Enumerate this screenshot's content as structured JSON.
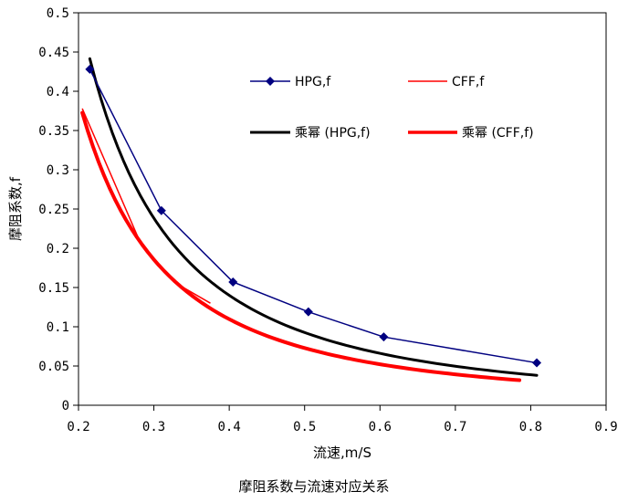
{
  "chart_data": {
    "type": "scatter",
    "title": "",
    "caption": "摩阻系数与流速对应关系",
    "xlabel": "流速,m/S",
    "ylabel": "摩阻系数,f",
    "xlim": [
      0.2,
      0.9
    ],
    "ylim": [
      0,
      0.5
    ],
    "x_ticks": [
      0.2,
      0.3,
      0.4,
      0.5,
      0.6,
      0.7,
      0.8,
      0.9
    ],
    "y_ticks": [
      0,
      0.05,
      0.1,
      0.15,
      0.2,
      0.25,
      0.3,
      0.35,
      0.4,
      0.45,
      0.5
    ],
    "x_tick_labels": [
      "0.2",
      "0.3",
      "0.4",
      "0.5",
      "0.6",
      "0.7",
      "0.8",
      "0.9"
    ],
    "y_tick_labels": [
      "0",
      "0.05",
      "0.1",
      "0.15",
      "0.2",
      "0.25",
      "0.3",
      "0.35",
      "0.4",
      "0.45",
      "0.5"
    ],
    "grid": false,
    "legend_position": "top-right inside",
    "series": [
      {
        "name": "HPG,f",
        "kind": "line-markers",
        "color": "#000080",
        "marker": "diamond",
        "x": [
          0.215,
          0.31,
          0.405,
          0.505,
          0.605,
          0.808
        ],
        "y": [
          0.428,
          0.248,
          0.157,
          0.119,
          0.087,
          0.054
        ]
      },
      {
        "name": "CFF,f",
        "kind": "line",
        "color": "#ff0000",
        "x": [
          0.205,
          0.283,
          0.33,
          0.375
        ],
        "y": [
          0.378,
          0.205,
          0.155,
          0.13
        ]
      },
      {
        "name": "乘幂 (HPG,f)",
        "kind": "power-trend",
        "color": "#000000",
        "coef": 0.0257,
        "exponent": -1.85,
        "x_range": [
          0.215,
          0.808
        ]
      },
      {
        "name": "乘幂 (CFF,f)",
        "kind": "power-trend",
        "color": "#ff0000",
        "coef": 0.0205,
        "exponent": -1.83,
        "x_range": [
          0.205,
          0.785
        ]
      }
    ]
  }
}
